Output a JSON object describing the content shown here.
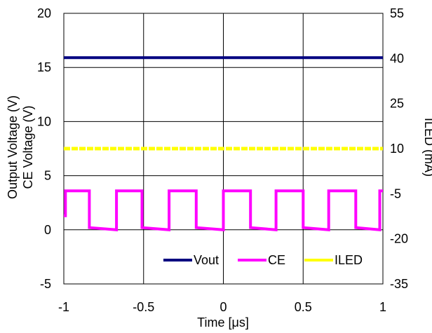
{
  "chart_data": {
    "type": "line",
    "title": "",
    "xlabel": "Time [μs]",
    "ylabel_left": [
      "Output Voltage (V)",
      "CE Voltage (V)"
    ],
    "ylabel_right": "ILED (mA)",
    "xlim": [
      -1,
      1
    ],
    "ylim_left": [
      -5,
      20
    ],
    "ylim_right": [
      -35,
      55
    ],
    "x_ticks": [
      "-1",
      "-0.5",
      "0",
      "0.5",
      "1"
    ],
    "y_ticks_left": [
      "-5",
      "0",
      "5",
      "10",
      "15",
      "20"
    ],
    "y_ticks_right": [
      "-35",
      "-20",
      "-5",
      "10",
      "25",
      "40",
      "55"
    ],
    "grid": true,
    "legend_position": "bottom-right",
    "series": [
      {
        "name": "Vout",
        "axis": "left",
        "color": "#000080",
        "x": [
          -1,
          1
        ],
        "y": [
          15.9,
          15.9
        ]
      },
      {
        "name": "CE",
        "axis": "left",
        "color": "#ff00ff",
        "x": [
          -1,
          -0.99,
          -0.99,
          -0.84,
          -0.84,
          -0.67,
          -0.67,
          -0.51,
          -0.51,
          -0.34,
          -0.34,
          -0.17,
          -0.17,
          0.0,
          0.0,
          0.17,
          0.17,
          0.33,
          0.33,
          0.5,
          0.5,
          0.66,
          0.66,
          0.83,
          0.83,
          0.98,
          0.98,
          1.0
        ],
        "y": [
          1.3,
          1.3,
          3.6,
          3.6,
          0.2,
          0.0,
          3.6,
          3.6,
          0.2,
          0.0,
          3.6,
          3.6,
          0.2,
          0.0,
          3.6,
          3.6,
          0.2,
          0.0,
          3.6,
          3.6,
          0.2,
          0.0,
          3.6,
          3.6,
          0.2,
          0.0,
          3.6,
          3.6
        ]
      },
      {
        "name": "ILED",
        "axis": "right",
        "color": "#ffff00",
        "x": [
          -1,
          1
        ],
        "y": [
          10,
          10
        ]
      }
    ]
  }
}
